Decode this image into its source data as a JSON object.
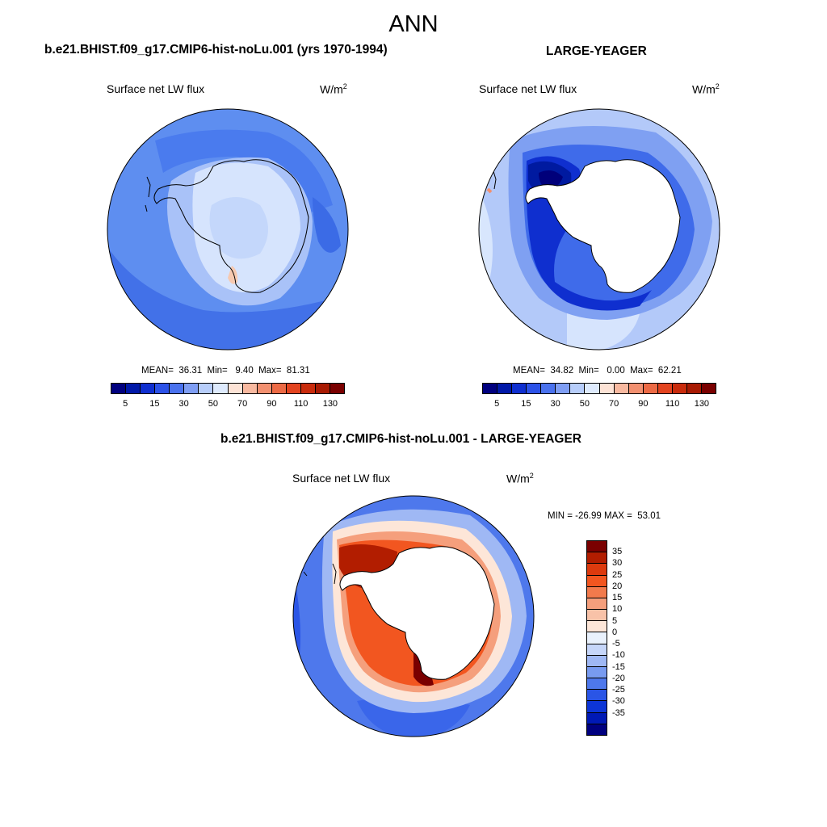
{
  "title": "ANN",
  "panels": {
    "model": {
      "title": "b.e21.BHIST.f09_g17.CMIP6-hist-noLu.001 (yrs 1970-1994)",
      "variable": "Surface net LW flux",
      "units_base": "W/m",
      "units_exp": "2",
      "stats": "MEAN=  36.31  Min=   9.40  Max=  81.31"
    },
    "obs": {
      "title": "LARGE-YEAGER",
      "variable": "Surface net LW flux",
      "units_base": "W/m",
      "units_exp": "2",
      "stats": "MEAN=  34.82  Min=   0.00  Max=  62.21"
    },
    "diff": {
      "title": "b.e21.BHIST.f09_g17.CMIP6-hist-noLu.001 - LARGE-YEAGER",
      "variable": "Surface net LW flux",
      "units_base": "W/m",
      "units_exp": "2",
      "stats": "MIN = -26.99 MAX =  53.01"
    }
  },
  "colorbar_abs": {
    "colors": [
      "#00007f",
      "#0018a8",
      "#0f2fd0",
      "#2c52e8",
      "#4a72ee",
      "#7f9ef4",
      "#b7cdfa",
      "#deeafd",
      "#fde3d6",
      "#f8b9a0",
      "#f29070",
      "#ec6a45",
      "#e3431f",
      "#c92b0c",
      "#a81a03",
      "#7a0000"
    ],
    "ticks": [
      "5",
      "15",
      "30",
      "50",
      "70",
      "90",
      "110",
      "130"
    ]
  },
  "colorbar_diff": {
    "colors": [
      "#7a0000",
      "#b21d00",
      "#dd3a0e",
      "#f25620",
      "#f27a4c",
      "#f59f7c",
      "#f8c2a8",
      "#fde6d8",
      "#e9f1fc",
      "#c6d6f9",
      "#9fb8f4",
      "#789bf0",
      "#4e78ec",
      "#2a55e6",
      "#0d35d6",
      "#0019b5",
      "#00007f"
    ],
    "ticks": [
      "35",
      "30",
      "25",
      "20",
      "15",
      "10",
      "5",
      "0",
      "-5",
      "-10",
      "-15",
      "-20",
      "-25",
      "-30",
      "-35"
    ]
  }
}
